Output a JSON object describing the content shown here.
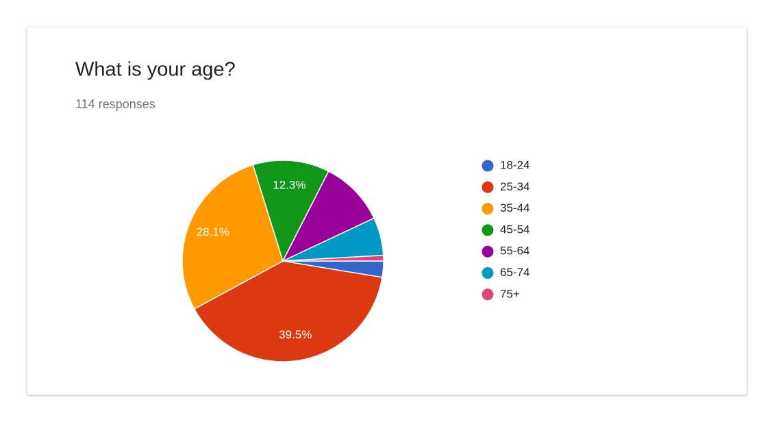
{
  "chart_data": {
    "type": "pie",
    "title": "What is your age?",
    "subtitle": "114 responses",
    "categories": [
      "18-24",
      "25-34",
      "35-44",
      "45-54",
      "55-64",
      "65-74",
      "75+"
    ],
    "values": [
      2.6,
      39.5,
      28.1,
      12.3,
      10.5,
      6.1,
      0.9
    ],
    "value_labels": [
      null,
      "39.5%",
      "28.1%",
      "12.3%",
      null,
      null,
      null
    ],
    "colors": [
      "#3366cc",
      "#dc3912",
      "#ff9900",
      "#109618",
      "#990099",
      "#0099c6",
      "#dd4477"
    ],
    "legend": "right"
  }
}
